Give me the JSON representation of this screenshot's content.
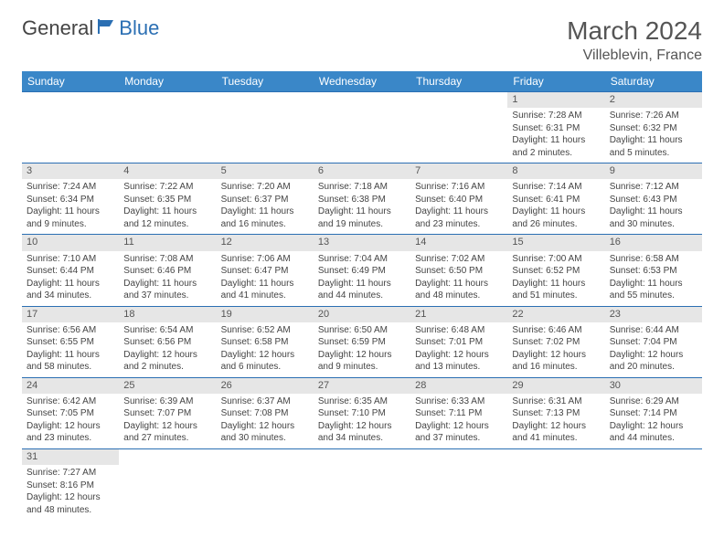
{
  "logo": {
    "text1": "General",
    "text2": "Blue"
  },
  "title": "March 2024",
  "location": "Villeblevin, France",
  "colors": {
    "header_bg": "#3a87c8",
    "border": "#2b6fb3",
    "daynum_bg": "#e6e6e6",
    "text": "#444444",
    "logo_blue": "#2b6fb3"
  },
  "weekdays": [
    "Sunday",
    "Monday",
    "Tuesday",
    "Wednesday",
    "Thursday",
    "Friday",
    "Saturday"
  ],
  "weeks": [
    [
      null,
      null,
      null,
      null,
      null,
      {
        "n": "1",
        "sr": "Sunrise: 7:28 AM",
        "ss": "Sunset: 6:31 PM",
        "dl": "Daylight: 11 hours and 2 minutes."
      },
      {
        "n": "2",
        "sr": "Sunrise: 7:26 AM",
        "ss": "Sunset: 6:32 PM",
        "dl": "Daylight: 11 hours and 5 minutes."
      }
    ],
    [
      {
        "n": "3",
        "sr": "Sunrise: 7:24 AM",
        "ss": "Sunset: 6:34 PM",
        "dl": "Daylight: 11 hours and 9 minutes."
      },
      {
        "n": "4",
        "sr": "Sunrise: 7:22 AM",
        "ss": "Sunset: 6:35 PM",
        "dl": "Daylight: 11 hours and 12 minutes."
      },
      {
        "n": "5",
        "sr": "Sunrise: 7:20 AM",
        "ss": "Sunset: 6:37 PM",
        "dl": "Daylight: 11 hours and 16 minutes."
      },
      {
        "n": "6",
        "sr": "Sunrise: 7:18 AM",
        "ss": "Sunset: 6:38 PM",
        "dl": "Daylight: 11 hours and 19 minutes."
      },
      {
        "n": "7",
        "sr": "Sunrise: 7:16 AM",
        "ss": "Sunset: 6:40 PM",
        "dl": "Daylight: 11 hours and 23 minutes."
      },
      {
        "n": "8",
        "sr": "Sunrise: 7:14 AM",
        "ss": "Sunset: 6:41 PM",
        "dl": "Daylight: 11 hours and 26 minutes."
      },
      {
        "n": "9",
        "sr": "Sunrise: 7:12 AM",
        "ss": "Sunset: 6:43 PM",
        "dl": "Daylight: 11 hours and 30 minutes."
      }
    ],
    [
      {
        "n": "10",
        "sr": "Sunrise: 7:10 AM",
        "ss": "Sunset: 6:44 PM",
        "dl": "Daylight: 11 hours and 34 minutes."
      },
      {
        "n": "11",
        "sr": "Sunrise: 7:08 AM",
        "ss": "Sunset: 6:46 PM",
        "dl": "Daylight: 11 hours and 37 minutes."
      },
      {
        "n": "12",
        "sr": "Sunrise: 7:06 AM",
        "ss": "Sunset: 6:47 PM",
        "dl": "Daylight: 11 hours and 41 minutes."
      },
      {
        "n": "13",
        "sr": "Sunrise: 7:04 AM",
        "ss": "Sunset: 6:49 PM",
        "dl": "Daylight: 11 hours and 44 minutes."
      },
      {
        "n": "14",
        "sr": "Sunrise: 7:02 AM",
        "ss": "Sunset: 6:50 PM",
        "dl": "Daylight: 11 hours and 48 minutes."
      },
      {
        "n": "15",
        "sr": "Sunrise: 7:00 AM",
        "ss": "Sunset: 6:52 PM",
        "dl": "Daylight: 11 hours and 51 minutes."
      },
      {
        "n": "16",
        "sr": "Sunrise: 6:58 AM",
        "ss": "Sunset: 6:53 PM",
        "dl": "Daylight: 11 hours and 55 minutes."
      }
    ],
    [
      {
        "n": "17",
        "sr": "Sunrise: 6:56 AM",
        "ss": "Sunset: 6:55 PM",
        "dl": "Daylight: 11 hours and 58 minutes."
      },
      {
        "n": "18",
        "sr": "Sunrise: 6:54 AM",
        "ss": "Sunset: 6:56 PM",
        "dl": "Daylight: 12 hours and 2 minutes."
      },
      {
        "n": "19",
        "sr": "Sunrise: 6:52 AM",
        "ss": "Sunset: 6:58 PM",
        "dl": "Daylight: 12 hours and 6 minutes."
      },
      {
        "n": "20",
        "sr": "Sunrise: 6:50 AM",
        "ss": "Sunset: 6:59 PM",
        "dl": "Daylight: 12 hours and 9 minutes."
      },
      {
        "n": "21",
        "sr": "Sunrise: 6:48 AM",
        "ss": "Sunset: 7:01 PM",
        "dl": "Daylight: 12 hours and 13 minutes."
      },
      {
        "n": "22",
        "sr": "Sunrise: 6:46 AM",
        "ss": "Sunset: 7:02 PM",
        "dl": "Daylight: 12 hours and 16 minutes."
      },
      {
        "n": "23",
        "sr": "Sunrise: 6:44 AM",
        "ss": "Sunset: 7:04 PM",
        "dl": "Daylight: 12 hours and 20 minutes."
      }
    ],
    [
      {
        "n": "24",
        "sr": "Sunrise: 6:42 AM",
        "ss": "Sunset: 7:05 PM",
        "dl": "Daylight: 12 hours and 23 minutes."
      },
      {
        "n": "25",
        "sr": "Sunrise: 6:39 AM",
        "ss": "Sunset: 7:07 PM",
        "dl": "Daylight: 12 hours and 27 minutes."
      },
      {
        "n": "26",
        "sr": "Sunrise: 6:37 AM",
        "ss": "Sunset: 7:08 PM",
        "dl": "Daylight: 12 hours and 30 minutes."
      },
      {
        "n": "27",
        "sr": "Sunrise: 6:35 AM",
        "ss": "Sunset: 7:10 PM",
        "dl": "Daylight: 12 hours and 34 minutes."
      },
      {
        "n": "28",
        "sr": "Sunrise: 6:33 AM",
        "ss": "Sunset: 7:11 PM",
        "dl": "Daylight: 12 hours and 37 minutes."
      },
      {
        "n": "29",
        "sr": "Sunrise: 6:31 AM",
        "ss": "Sunset: 7:13 PM",
        "dl": "Daylight: 12 hours and 41 minutes."
      },
      {
        "n": "30",
        "sr": "Sunrise: 6:29 AM",
        "ss": "Sunset: 7:14 PM",
        "dl": "Daylight: 12 hours and 44 minutes."
      }
    ],
    [
      {
        "n": "31",
        "sr": "Sunrise: 7:27 AM",
        "ss": "Sunset: 8:16 PM",
        "dl": "Daylight: 12 hours and 48 minutes."
      },
      null,
      null,
      null,
      null,
      null,
      null
    ]
  ]
}
